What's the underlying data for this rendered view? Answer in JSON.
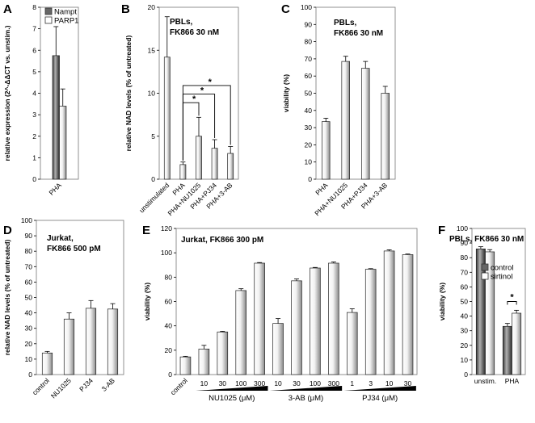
{
  "chart_data": [
    {
      "id": "A",
      "type": "bar",
      "letter": "A",
      "ylabel": "relative expression (2^-ΔΔCT vs. unstim.)",
      "ylim": [
        0,
        8
      ],
      "yticks": [
        0,
        1,
        2,
        3,
        4,
        5,
        6,
        7,
        8
      ],
      "categories": [
        "PHA"
      ],
      "series": [
        {
          "name": "Nampt",
          "fill": "dark",
          "values": [
            5.75
          ],
          "errors": [
            1.35
          ]
        },
        {
          "name": "PARP1",
          "fill": "light",
          "values": [
            3.4
          ],
          "errors": [
            0.8
          ]
        }
      ],
      "legend": [
        "Nampt",
        "PARP1"
      ]
    },
    {
      "id": "B",
      "type": "bar",
      "letter": "B",
      "title_lines": [
        "PBLs,",
        "FK866 30 nM"
      ],
      "ylabel": "relative NAD levels (% of untreated)",
      "ylim": [
        0,
        20
      ],
      "yticks": [
        0,
        5,
        10,
        15,
        20
      ],
      "categories": [
        "unstimulated",
        "PHA",
        "PHA+NU1025",
        "PHA+PJ34",
        "PHA+3-AB"
      ],
      "series": [
        {
          "name": "NAD",
          "fill": "light",
          "values": [
            14.2,
            1.7,
            5.0,
            3.6,
            3.0
          ],
          "errors": [
            4.7,
            0.3,
            2.2,
            1.0,
            0.8
          ]
        }
      ],
      "significance": [
        {
          "from": 1,
          "to": 2,
          "label": "*"
        },
        {
          "from": 1,
          "to": 3,
          "label": "*"
        },
        {
          "from": 1,
          "to": 4,
          "label": "*"
        }
      ]
    },
    {
      "id": "C",
      "type": "bar",
      "letter": "C",
      "title_lines": [
        "PBLs,",
        "FK866 30 nM"
      ],
      "ylabel": "viability (%)",
      "ylim": [
        0,
        100
      ],
      "yticks": [
        0,
        10,
        20,
        30,
        40,
        50,
        60,
        70,
        80,
        90,
        100
      ],
      "categories": [
        "PHA",
        "PHA+NU1025",
        "PHA+PJ34",
        "PHA+3-AB"
      ],
      "series": [
        {
          "name": "viability",
          "fill": "light",
          "values": [
            33.5,
            68.5,
            64.5,
            50
          ],
          "errors": [
            2,
            3,
            4,
            4
          ]
        }
      ]
    },
    {
      "id": "D",
      "type": "bar",
      "letter": "D",
      "title_lines": [
        "Jurkat,",
        "FK866 500 pM"
      ],
      "ylabel": "relative NAD levels (% of untreated)",
      "ylim": [
        0,
        100
      ],
      "yticks": [
        0,
        10,
        20,
        30,
        40,
        50,
        60,
        70,
        80,
        90,
        100
      ],
      "categories": [
        "control",
        "NU1025",
        "PJ34",
        "3-AB"
      ],
      "series": [
        {
          "name": "NAD",
          "fill": "light",
          "values": [
            14,
            36,
            43,
            42.5
          ],
          "errors": [
            1,
            4,
            5,
            3.5
          ]
        }
      ]
    },
    {
      "id": "E",
      "type": "bar",
      "letter": "E",
      "title_lines": [
        "Jurkat, FK866 300 pM"
      ],
      "ylabel": "viability (%)",
      "ylim": [
        0,
        120
      ],
      "yticks": [
        0,
        20,
        40,
        60,
        80,
        100,
        120
      ],
      "categories": [
        "control",
        "10",
        "30",
        "100",
        "300",
        "10",
        "30",
        "100",
        "300",
        "1",
        "3",
        "10",
        "30"
      ],
      "groups": [
        {
          "label": "NU1025 (μM)",
          "start": 1,
          "end": 4
        },
        {
          "label": "3-AB (μM)",
          "start": 5,
          "end": 8
        },
        {
          "label": "PJ34 (μM)",
          "start": 9,
          "end": 12
        }
      ],
      "series": [
        {
          "name": "viability",
          "fill": "light",
          "values": [
            14.5,
            21,
            35,
            69,
            91.5,
            42,
            77,
            87.5,
            91.5,
            51,
            86.5,
            101.5,
            98.5
          ],
          "errors": [
            0.5,
            3,
            0.5,
            1.5,
            0.5,
            4,
            1.5,
            0.5,
            1,
            3,
            0.5,
            1,
            0.5
          ]
        }
      ]
    },
    {
      "id": "F",
      "type": "bar",
      "letter": "F",
      "title_lines": [
        "PBLs, FK866 30 nM"
      ],
      "ylabel": "viability (%)",
      "ylim": [
        0,
        100
      ],
      "yticks": [
        0,
        10,
        20,
        30,
        40,
        50,
        60,
        70,
        80,
        90,
        100
      ],
      "categories": [
        "unstim.",
        "PHA"
      ],
      "series": [
        {
          "name": "control",
          "fill": "dark",
          "values": [
            86,
            33
          ],
          "errors": [
            1.5,
            2
          ]
        },
        {
          "name": "sirtinol",
          "fill": "light",
          "values": [
            84,
            42
          ],
          "errors": [
            1.5,
            2
          ]
        }
      ],
      "legend": [
        "control",
        "sirtinol"
      ],
      "significance": [
        {
          "category": 1,
          "label": "*"
        }
      ]
    }
  ]
}
